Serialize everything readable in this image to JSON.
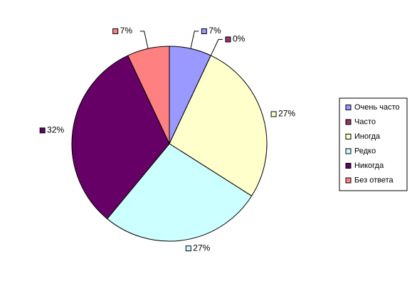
{
  "chart_data": {
    "type": "pie",
    "categories": [
      "Очень часто",
      "Часто",
      "Иногда",
      "Редко",
      "Никогда",
      "Без ответа"
    ],
    "values": [
      7,
      0,
      27,
      27,
      32,
      7
    ],
    "value_labels": [
      "7%",
      "0%",
      "27%",
      "27%",
      "32%",
      "7%"
    ],
    "colors": [
      "#9999ff",
      "#993366",
      "#ffffcc",
      "#ccffff",
      "#660066",
      "#ff8080"
    ],
    "legend": "right"
  }
}
